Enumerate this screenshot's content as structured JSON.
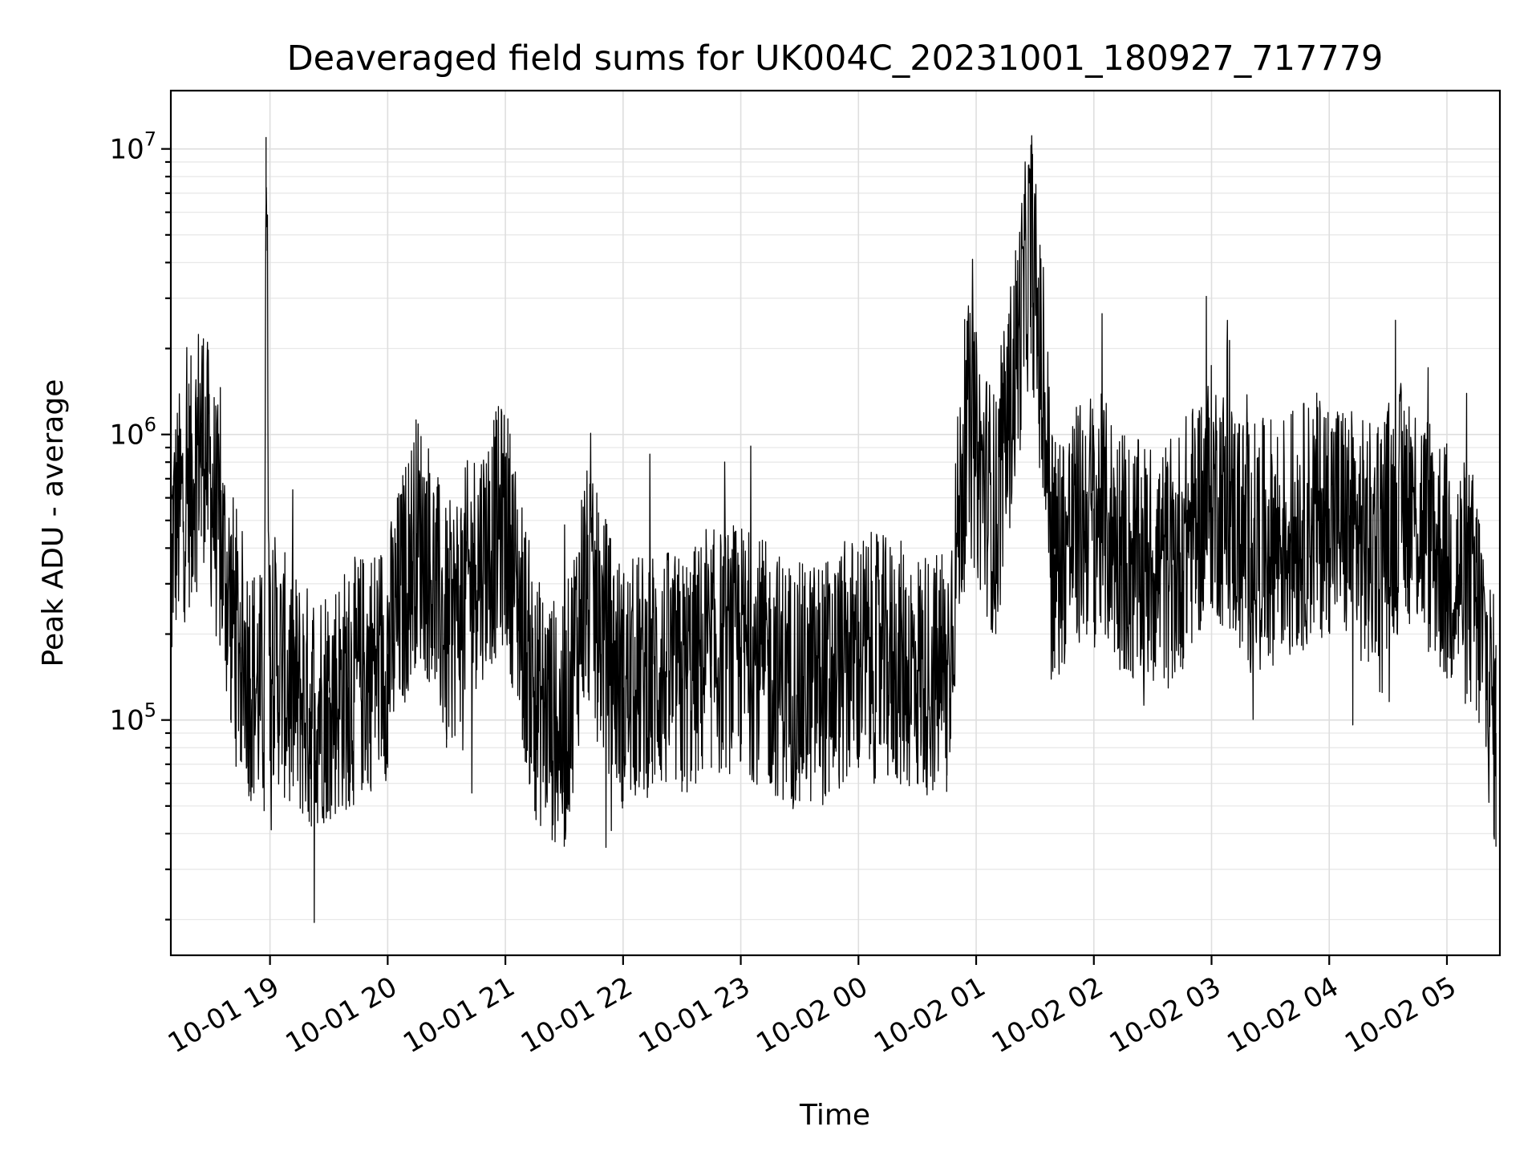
{
  "chart_data": {
    "type": "line",
    "title": "Deaveraged field sums for UK004C_20231001_180927_717779",
    "xlabel": "Time",
    "ylabel": "Peak ADU - average",
    "yscale": "log",
    "xlim": [
      "2023-10-01 18:09:27",
      "2023-10-02 05:27:00"
    ],
    "ylim": [
      15000,
      16000000
    ],
    "x_ticks": [
      "10-01 19",
      "10-01 20",
      "10-01 21",
      "10-01 22",
      "10-01 23",
      "10-02 00",
      "10-02 01",
      "10-02 02",
      "10-02 03",
      "10-02 04",
      "10-02 05"
    ],
    "y_ticks": [
      {
        "base": "10",
        "exp": "5",
        "value": 100000
      },
      {
        "base": "10",
        "exp": "6",
        "value": 1000000
      },
      {
        "base": "10",
        "exp": "7",
        "value": 10000000
      }
    ],
    "grid": true,
    "series_color": "#000000",
    "series": [
      {
        "x": [
          "2023-10-01 18:10",
          "2023-10-01 18:20",
          "2023-10-01 18:25",
          "2023-10-01 18:30",
          "2023-10-01 18:40",
          "2023-10-01 18:45",
          "2023-10-01 18:50",
          "2023-10-01 18:57",
          "2023-10-01 18:58",
          "2023-10-01 19:00",
          "2023-10-01 19:10",
          "2023-10-01 19:20",
          "2023-10-01 19:30",
          "2023-10-01 19:40",
          "2023-10-01 19:50",
          "2023-10-01 20:00",
          "2023-10-01 20:15",
          "2023-10-01 20:20",
          "2023-10-01 20:30",
          "2023-10-01 20:45",
          "2023-10-01 21:00",
          "2023-10-01 21:15",
          "2023-10-01 21:30",
          "2023-10-01 21:40",
          "2023-10-01 22:00",
          "2023-10-01 22:15",
          "2023-10-01 22:30",
          "2023-10-01 22:45",
          "2023-10-01 23:00",
          "2023-10-01 23:15",
          "2023-10-01 23:30",
          "2023-10-01 23:45",
          "2023-10-02 00:00",
          "2023-10-02 00:15",
          "2023-10-02 00:30",
          "2023-10-02 00:45",
          "2023-10-02 00:55",
          "2023-10-02 01:10",
          "2023-10-02 01:28",
          "2023-10-02 01:40",
          "2023-10-02 02:00",
          "2023-10-02 02:20",
          "2023-10-02 02:40",
          "2023-10-02 03:00",
          "2023-10-02 03:20",
          "2023-10-02 03:40",
          "2023-10-02 04:00",
          "2023-10-02 04:20",
          "2023-10-02 04:40",
          "2023-10-02 05:00",
          "2023-10-02 05:15",
          "2023-10-02 05:25"
        ],
        "values": [
          450000,
          700000,
          1100000,
          650000,
          250000,
          180000,
          140000,
          120000,
          11000000,
          180000,
          130000,
          110000,
          120000,
          130000,
          150000,
          170000,
          450000,
          380000,
          200000,
          350000,
          500000,
          120000,
          90000,
          300000,
          130000,
          150000,
          140000,
          170000,
          180000,
          150000,
          130000,
          140000,
          170000,
          160000,
          150000,
          140000,
          1100000,
          500000,
          4800000,
          380000,
          550000,
          350000,
          350000,
          650000,
          400000,
          450000,
          550000,
          400000,
          600000,
          350000,
          270000,
          90000
        ]
      }
    ]
  }
}
